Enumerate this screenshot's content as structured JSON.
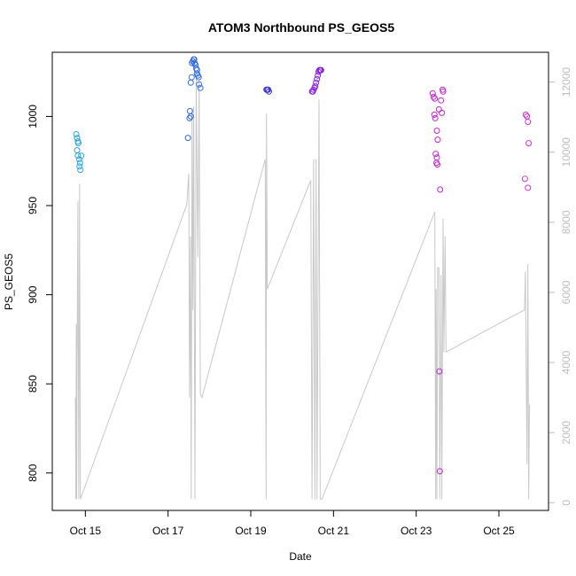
{
  "chart_data": {
    "type": "scatter",
    "title": "ATOM3 Northbound PS_GEOS5",
    "xlabel": "Date",
    "ylabel": "PS_GEOS5",
    "x_ticks": [
      {
        "day": 15,
        "label": "Oct 15"
      },
      {
        "day": 17,
        "label": "Oct 17"
      },
      {
        "day": 19,
        "label": "Oct 19"
      },
      {
        "day": 21,
        "label": "Oct 21"
      },
      {
        "day": 23,
        "label": "Oct 23"
      },
      {
        "day": 25,
        "label": "Oct 25"
      }
    ],
    "xlim": [
      14.2,
      26.2
    ],
    "ylim": [
      779,
      1036
    ],
    "y_ticks": [
      800,
      850,
      900,
      950,
      1000
    ],
    "y2_ticks": [
      0,
      2000,
      4000,
      6000,
      8000,
      10000,
      12000
    ],
    "y2lim": [
      -220,
      12850
    ],
    "grid": false,
    "colors": {
      "line": "#c8c8c8",
      "right_axis": "#bdbdbd",
      "frame": "#000000"
    },
    "scatter_series": [
      {
        "color": "#29a3e3",
        "points": [
          [
            14.78,
            990
          ],
          [
            14.8,
            988
          ],
          [
            14.82,
            986
          ],
          [
            14.83,
            985
          ],
          [
            14.8,
            981
          ],
          [
            14.82,
            978
          ],
          [
            14.85,
            976
          ],
          [
            14.87,
            974
          ],
          [
            14.86,
            972
          ],
          [
            14.88,
            970
          ],
          [
            14.9,
            978
          ]
        ]
      },
      {
        "color": "#2f6ae6",
        "points": [
          [
            17.48,
            988
          ],
          [
            17.52,
            999
          ],
          [
            17.55,
            1000
          ],
          [
            17.53,
            1003
          ],
          [
            17.55,
            1019
          ],
          [
            17.57,
            1022
          ],
          [
            17.58,
            1030
          ],
          [
            17.6,
            1031
          ],
          [
            17.62,
            1032
          ],
          [
            17.63,
            1032
          ],
          [
            17.64,
            1030
          ],
          [
            17.66,
            1029
          ],
          [
            17.68,
            1027
          ],
          [
            17.7,
            1026
          ],
          [
            17.7,
            1024
          ],
          [
            17.72,
            1023
          ],
          [
            17.74,
            1022
          ],
          [
            17.75,
            1018
          ],
          [
            17.78,
            1016
          ]
        ]
      },
      {
        "color": "#3a34e0",
        "points": [
          [
            19.38,
            1015
          ],
          [
            19.4,
            1015
          ],
          [
            19.42,
            1015
          ],
          [
            19.44,
            1014
          ]
        ]
      },
      {
        "color": "#8a1ee8",
        "points": [
          [
            20.48,
            1014
          ],
          [
            20.5,
            1014
          ],
          [
            20.52,
            1015
          ],
          [
            20.54,
            1016
          ],
          [
            20.56,
            1017
          ],
          [
            20.58,
            1019
          ],
          [
            20.6,
            1021
          ],
          [
            20.62,
            1023
          ],
          [
            20.64,
            1025
          ],
          [
            20.66,
            1026
          ],
          [
            20.68,
            1026
          ],
          [
            20.7,
            1026
          ]
        ]
      },
      {
        "color": "#c920d8",
        "points": [
          [
            23.4,
            1013
          ],
          [
            23.42,
            1011
          ],
          [
            23.45,
            1010
          ],
          [
            23.44,
            1001
          ],
          [
            23.46,
            999
          ],
          [
            23.5,
            992
          ],
          [
            23.52,
            987
          ],
          [
            23.47,
            979
          ],
          [
            23.5,
            977
          ],
          [
            23.49,
            974
          ],
          [
            23.51,
            973
          ],
          [
            23.58,
            959
          ],
          [
            23.55,
            1004
          ],
          [
            23.6,
            1009
          ],
          [
            23.64,
            1015
          ],
          [
            23.65,
            1014
          ],
          [
            23.62,
            1002
          ],
          [
            23.56,
            857
          ],
          [
            23.57,
            801
          ]
        ]
      },
      {
        "color": "#d630d6",
        "points": [
          [
            25.65,
            1001
          ],
          [
            25.68,
            1000
          ],
          [
            25.7,
            997
          ],
          [
            25.72,
            985
          ],
          [
            25.63,
            965
          ],
          [
            25.7,
            960
          ]
        ]
      }
    ],
    "line_series": {
      "color": "#c8c8c8",
      "points": [
        [
          14.76,
          3000
        ],
        [
          14.77,
          100
        ],
        [
          14.78,
          5100
        ],
        [
          14.79,
          100
        ],
        [
          14.8,
          4000
        ],
        [
          14.82,
          8600
        ],
        [
          14.84,
          100
        ],
        [
          14.86,
          9100
        ],
        [
          14.88,
          100
        ],
        [
          17.45,
          8500
        ],
        [
          17.5,
          9400
        ],
        [
          17.52,
          3000
        ],
        [
          17.54,
          7600
        ],
        [
          17.56,
          100
        ],
        [
          17.58,
          11200
        ],
        [
          17.6,
          5500
        ],
        [
          17.62,
          11300
        ],
        [
          17.65,
          100
        ],
        [
          17.68,
          12100
        ],
        [
          17.72,
          7000
        ],
        [
          17.75,
          12000
        ],
        [
          17.78,
          3100
        ],
        [
          17.82,
          3000
        ],
        [
          19.35,
          9800
        ],
        [
          19.37,
          100
        ],
        [
          19.38,
          11100
        ],
        [
          19.4,
          6100
        ],
        [
          20.45,
          9200
        ],
        [
          20.48,
          100
        ],
        [
          20.52,
          9800
        ],
        [
          20.55,
          100
        ],
        [
          20.58,
          9800
        ],
        [
          20.6,
          100
        ],
        [
          20.65,
          11500
        ],
        [
          20.68,
          100
        ],
        [
          20.72,
          100
        ],
        [
          23.45,
          8300
        ],
        [
          23.47,
          100
        ],
        [
          23.48,
          6100
        ],
        [
          23.5,
          100
        ],
        [
          23.52,
          6700
        ],
        [
          23.55,
          6700
        ],
        [
          23.57,
          100
        ],
        [
          23.6,
          6500
        ],
        [
          23.62,
          100
        ],
        [
          23.65,
          8100
        ],
        [
          23.67,
          4300
        ],
        [
          23.7,
          7600
        ],
        [
          23.72,
          4300
        ],
        [
          25.62,
          5500
        ],
        [
          25.64,
          6600
        ],
        [
          25.68,
          1100
        ],
        [
          25.7,
          6800
        ],
        [
          25.72,
          100
        ],
        [
          25.74,
          2800
        ]
      ]
    }
  }
}
